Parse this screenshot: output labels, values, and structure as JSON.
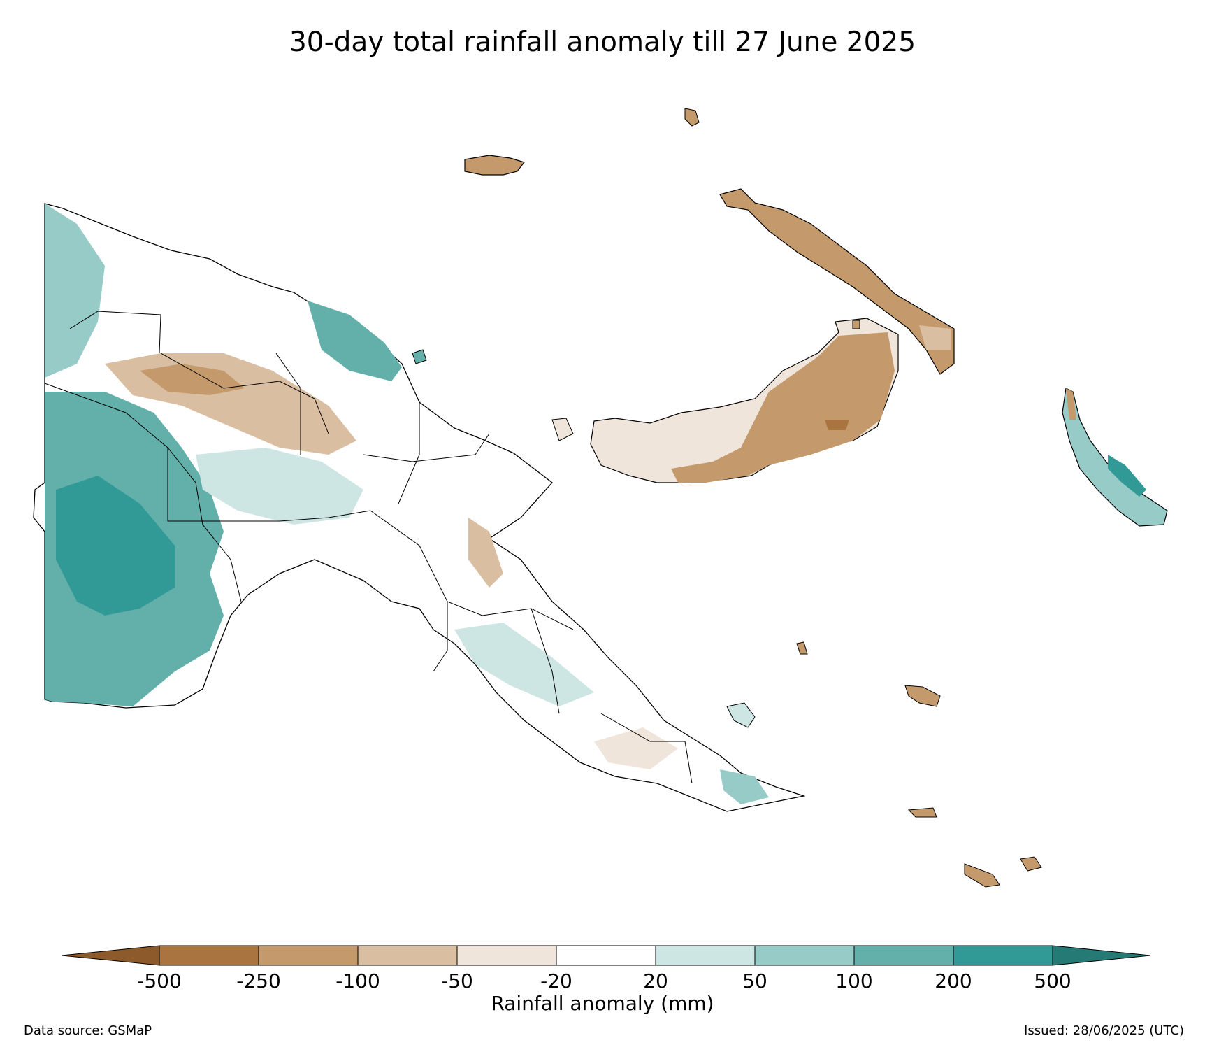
{
  "title": "30-day total rainfall anomaly till 27 June 2025",
  "colorbar": {
    "label": "Rainfall anomaly (mm)",
    "ticks": [
      "-500",
      "-250",
      "-100",
      "-50",
      "-20",
      "20",
      "50",
      "100",
      "200",
      "500"
    ],
    "bins": [
      {
        "range": "-500 to -250",
        "color": "#a97440"
      },
      {
        "range": "-250 to -100",
        "color": "#c49a6c"
      },
      {
        "range": "-100 to -50",
        "color": "#d9bea1"
      },
      {
        "range": "-50 to -20",
        "color": "#efe5db"
      },
      {
        "range": "-20 to 20",
        "color": "#ffffff"
      },
      {
        "range": "20 to 50",
        "color": "#cde6e4"
      },
      {
        "range": "50 to 100",
        "color": "#97cbc7"
      },
      {
        "range": "100 to 200",
        "color": "#63b0ab"
      },
      {
        "range": "200 to 500",
        "color": "#319a96"
      }
    ],
    "extend_low_color": "#8d5a2b",
    "extend_high_color": "#267a76"
  },
  "footer": {
    "source": "Data source: GSMaP",
    "issued": "Issued: 28/06/2025 (UTC)"
  }
}
